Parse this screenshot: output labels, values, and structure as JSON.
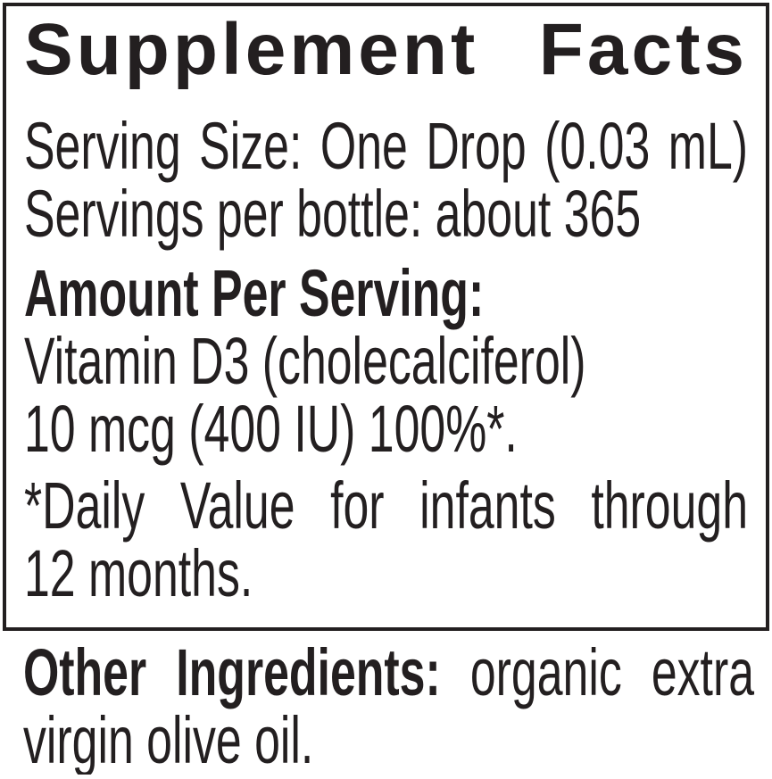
{
  "colors": {
    "text": "#231f20",
    "panel_border": "#231f20",
    "background": "#ffffff"
  },
  "panel": {
    "title": "Supplement Facts",
    "serving_size_line": "Serving Size: One Drop (0.03 mL)",
    "servings_per_bottle_line": "Servings per bottle: about 365",
    "amount_heading": "Amount Per Serving:",
    "nutrient_line": "Vitamin D3 (cholecalciferol)",
    "amount_line": "10 mcg (400 IU) 100%*.",
    "footnote_line1": "*Daily Value for infants through",
    "footnote_line2": "12 months."
  },
  "other_ingredients": {
    "label": "Other Ingredients:",
    "text_line1": "organic extra",
    "text_line2": "virgin olive oil."
  }
}
